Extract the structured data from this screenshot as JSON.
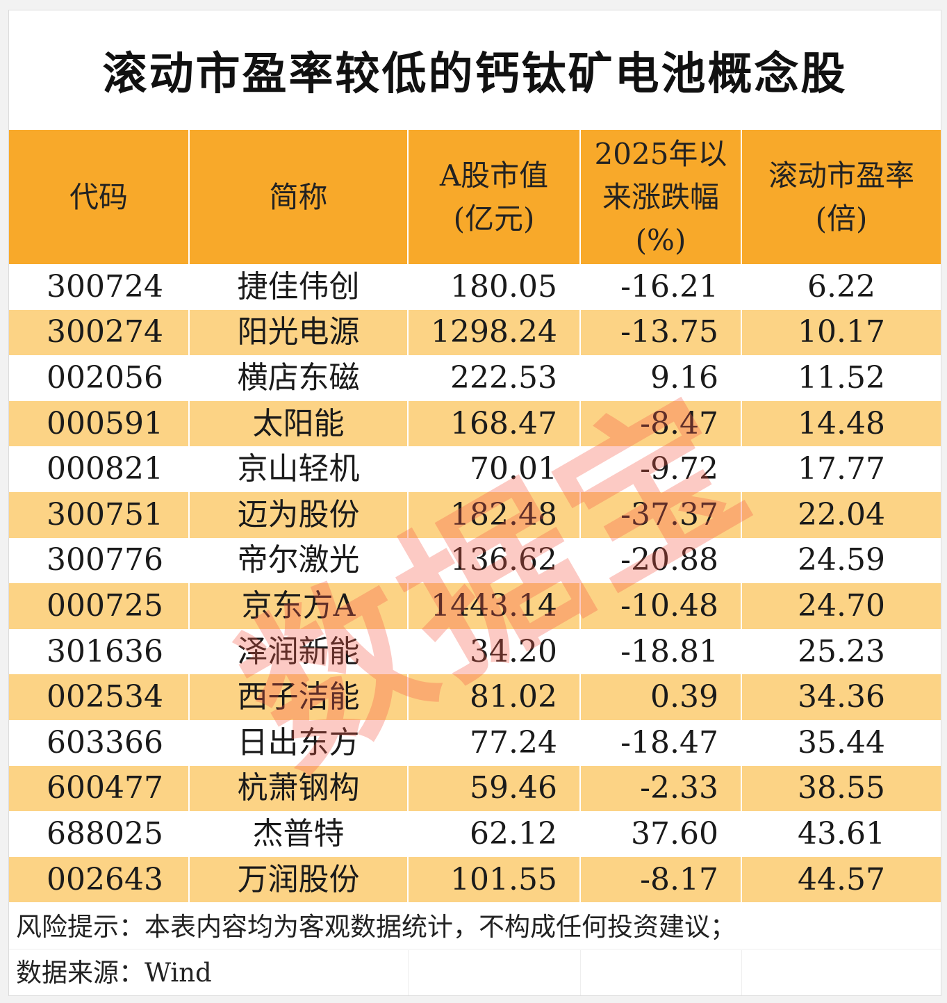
{
  "title": "滚动市盈率较低的钙钛矿电池概念股",
  "columns": [
    {
      "lines": [
        "代码"
      ]
    },
    {
      "lines": [
        "简称"
      ]
    },
    {
      "lines": [
        "A股市值",
        "(亿元)"
      ]
    },
    {
      "lines": [
        "2025年以",
        "来涨跌幅",
        "(%)"
      ]
    },
    {
      "lines": [
        "滚动市盈率",
        "(倍)"
      ]
    }
  ],
  "rows": [
    {
      "code": "300724",
      "name": "捷佳伟创",
      "cap": "180.05",
      "change": "-16.21",
      "pe": "6.22"
    },
    {
      "code": "300274",
      "name": "阳光电源",
      "cap": "1298.24",
      "change": "-13.75",
      "pe": "10.17"
    },
    {
      "code": "002056",
      "name": "横店东磁",
      "cap": "222.53",
      "change": "9.16",
      "pe": "11.52"
    },
    {
      "code": "000591",
      "name": "太阳能",
      "cap": "168.47",
      "change": "-8.47",
      "pe": "14.48"
    },
    {
      "code": "000821",
      "name": "京山轻机",
      "cap": "70.01",
      "change": "-9.72",
      "pe": "17.77"
    },
    {
      "code": "300751",
      "name": "迈为股份",
      "cap": "182.48",
      "change": "-37.37",
      "pe": "22.04"
    },
    {
      "code": "300776",
      "name": "帝尔激光",
      "cap": "136.62",
      "change": "-20.88",
      "pe": "24.59"
    },
    {
      "code": "000725",
      "name": "京东方A",
      "cap": "1443.14",
      "change": "-10.48",
      "pe": "24.70"
    },
    {
      "code": "301636",
      "name": "泽润新能",
      "cap": "34.20",
      "change": "-18.81",
      "pe": "25.23"
    },
    {
      "code": "002534",
      "name": "西子洁能",
      "cap": "81.02",
      "change": "0.39",
      "pe": "34.36"
    },
    {
      "code": "603366",
      "name": "日出东方",
      "cap": "77.24",
      "change": "-18.47",
      "pe": "35.44"
    },
    {
      "code": "600477",
      "name": "杭萧钢构",
      "cap": "59.46",
      "change": "-2.33",
      "pe": "38.55"
    },
    {
      "code": "688025",
      "name": "杰普特",
      "cap": "62.12",
      "change": "37.60",
      "pe": "43.61"
    },
    {
      "code": "002643",
      "name": "万润股份",
      "cap": "101.55",
      "change": "-8.17",
      "pe": "44.57"
    }
  ],
  "footer": {
    "risk_note": "风险提示：本表内容均为客观数据统计，不构成任何投资建议；",
    "source_note": "数据来源：Wind"
  },
  "watermark": "数据宝",
  "colors": {
    "header_bg": "#f8a92a",
    "stripe_bg": "#fcd385",
    "watermark": "#f55a46"
  }
}
